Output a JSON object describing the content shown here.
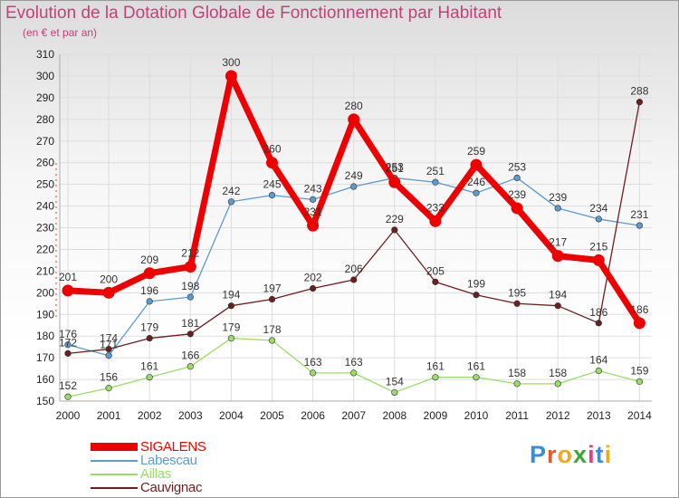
{
  "header": {
    "title": "Evolution de la Dotation Globale de Fonctionnement par Habitant",
    "subtitle": "(en € et par an)"
  },
  "logo": {
    "text": "Proxiti",
    "colors": [
      "#3a8ed8",
      "#e8592a",
      "#f0a81c",
      "#3aa83a",
      "#e83a8a",
      "#3a8ed8",
      "#f0a81c"
    ]
  },
  "chart_data": {
    "type": "line",
    "title": "Evolution de la Dotation Globale de Fonctionnement par Habitant",
    "subtitle": "(en € et par an)",
    "xlabel": "",
    "ylabel": "",
    "x": [
      2000,
      2001,
      2002,
      2003,
      2004,
      2005,
      2006,
      2007,
      2008,
      2009,
      2010,
      2011,
      2012,
      2013,
      2014
    ],
    "ylim": [
      150,
      310
    ],
    "yticks": [
      150,
      160,
      170,
      180,
      190,
      200,
      210,
      220,
      230,
      240,
      250,
      260,
      270,
      280,
      290,
      300,
      310
    ],
    "grid": true,
    "legend_position": "bottom-left",
    "series": [
      {
        "name": "SIGALENS",
        "color": "#ee0000",
        "emphasis": true,
        "values": [
          201,
          200,
          209,
          212,
          300,
          260,
          231,
          280,
          251,
          233,
          259,
          239,
          217,
          215,
          186
        ]
      },
      {
        "name": "Labescau",
        "color": "#5b9bd0",
        "emphasis": false,
        "values": [
          176,
          171,
          196,
          198,
          242,
          245,
          243,
          249,
          253,
          251,
          246,
          253,
          239,
          234,
          231
        ]
      },
      {
        "name": "Aillas",
        "color": "#99dd66",
        "emphasis": false,
        "values": [
          152,
          156,
          161,
          166,
          179,
          178,
          163,
          163,
          154,
          161,
          161,
          158,
          158,
          164,
          159
        ]
      },
      {
        "name": "Cauvignac",
        "color": "#6e1e1e",
        "emphasis": false,
        "values": [
          172,
          174,
          179,
          181,
          194,
          197,
          202,
          206,
          229,
          205,
          199,
          195,
          194,
          186,
          288
        ]
      }
    ]
  }
}
